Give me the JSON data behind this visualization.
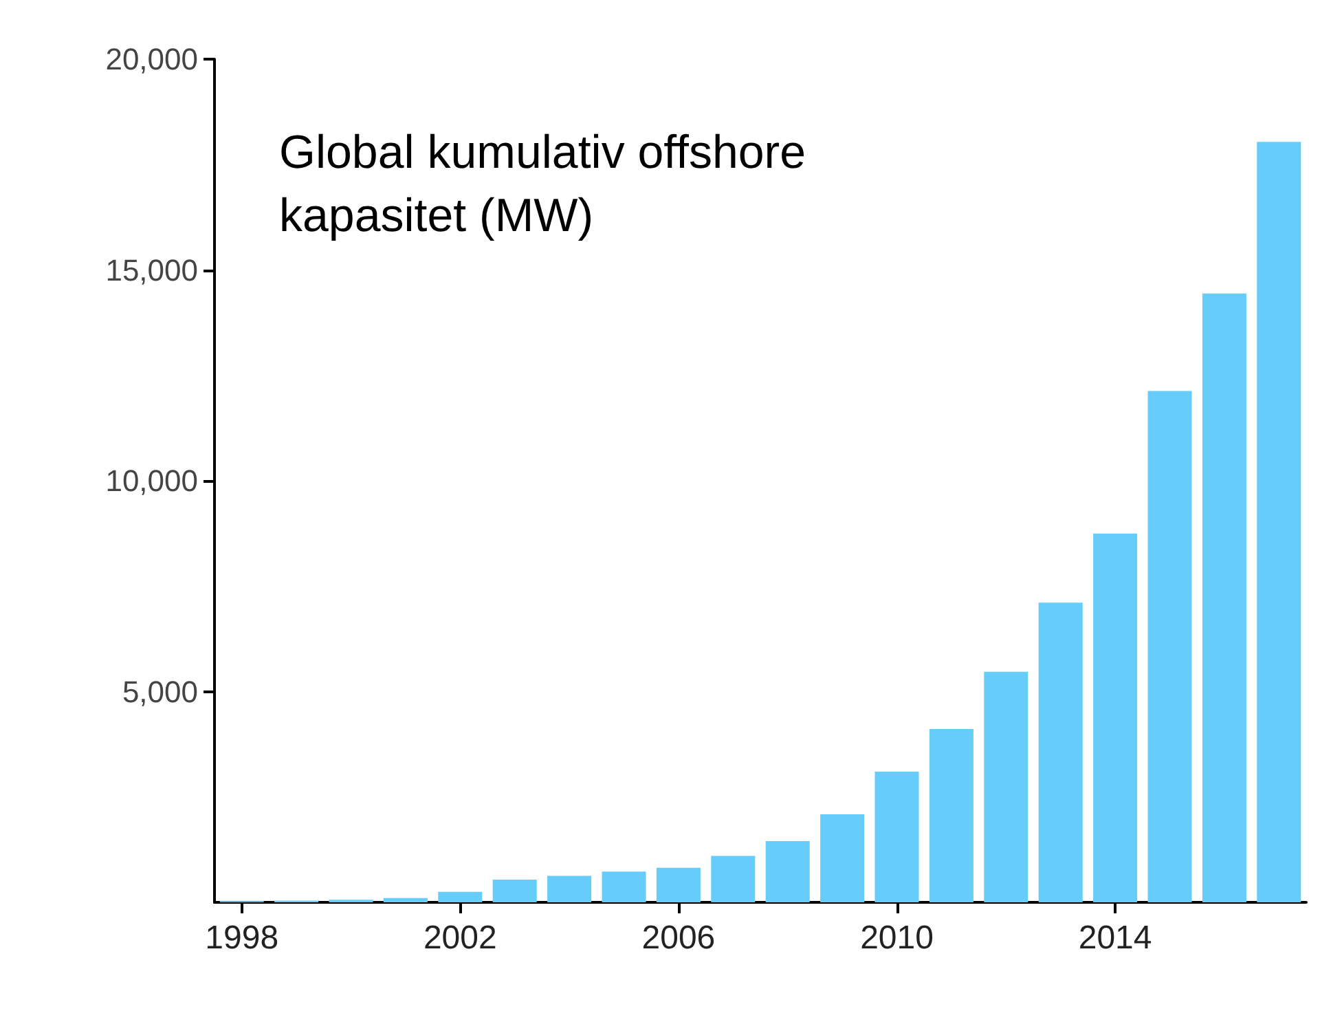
{
  "chart_data": {
    "type": "bar",
    "title": "Global kumulativ offshore\nkapasitet (MW)",
    "x": [
      1998,
      1999,
      2000,
      2001,
      2002,
      2003,
      2004,
      2005,
      2006,
      2007,
      2008,
      2009,
      2010,
      2011,
      2012,
      2013,
      2014,
      2015,
      2016,
      2017
    ],
    "values": [
      30,
      40,
      60,
      100,
      250,
      540,
      630,
      730,
      820,
      1100,
      1450,
      2090,
      3100,
      4110,
      5470,
      7110,
      8750,
      12130,
      14440,
      18040
    ],
    "color": "#66ccfa",
    "xlim": [
      1997.5,
      2017.5
    ],
    "xticks": [
      {
        "value": 1998,
        "label": "1998"
      },
      {
        "value": 2002,
        "label": "2002"
      },
      {
        "value": 2006,
        "label": "2006"
      },
      {
        "value": 2010,
        "label": "2010"
      },
      {
        "value": 2014,
        "label": "2014"
      }
    ],
    "ylim": [
      0,
      20000
    ],
    "yticks": [
      {
        "value": 5000,
        "label": "5,000"
      },
      {
        "value": 10000,
        "label": "10,000"
      },
      {
        "value": 15000,
        "label": "15,000"
      },
      {
        "value": 20000,
        "label": "20,000"
      }
    ],
    "grid": false
  }
}
